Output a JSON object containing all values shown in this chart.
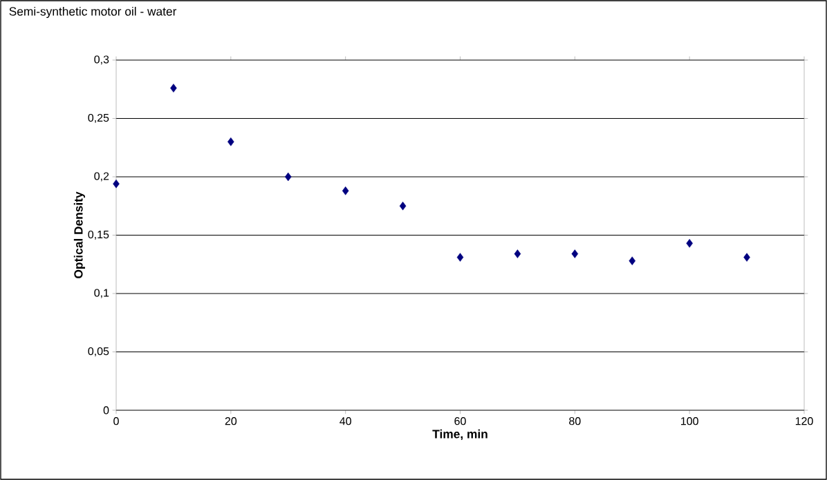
{
  "chart_data": {
    "type": "scatter",
    "title": "Semi-synthetic motor oil - water",
    "xlabel": "Time, min",
    "ylabel": "Optical Density",
    "x": [
      0,
      10,
      20,
      30,
      40,
      50,
      60,
      70,
      80,
      90,
      100,
      110
    ],
    "values": [
      0.194,
      0.276,
      0.23,
      0.2,
      0.188,
      0.175,
      0.131,
      0.134,
      0.134,
      0.128,
      0.143,
      0.131
    ],
    "color": "#000080",
    "marker": "diamond",
    "xlim": [
      0,
      120
    ],
    "xticks": [
      0,
      20,
      40,
      60,
      80,
      100,
      120
    ],
    "ylim": [
      0,
      0.3
    ],
    "yticks": [
      {
        "value": 0,
        "label": "0"
      },
      {
        "value": 0.05,
        "label": "0,05"
      },
      {
        "value": 0.1,
        "label": "0,1"
      },
      {
        "value": 0.15,
        "label": "0,15"
      },
      {
        "value": 0.2,
        "label": "0,2"
      },
      {
        "value": 0.25,
        "label": "0,25"
      },
      {
        "value": 0.3,
        "label": "0,3"
      }
    ],
    "grid": "y"
  }
}
